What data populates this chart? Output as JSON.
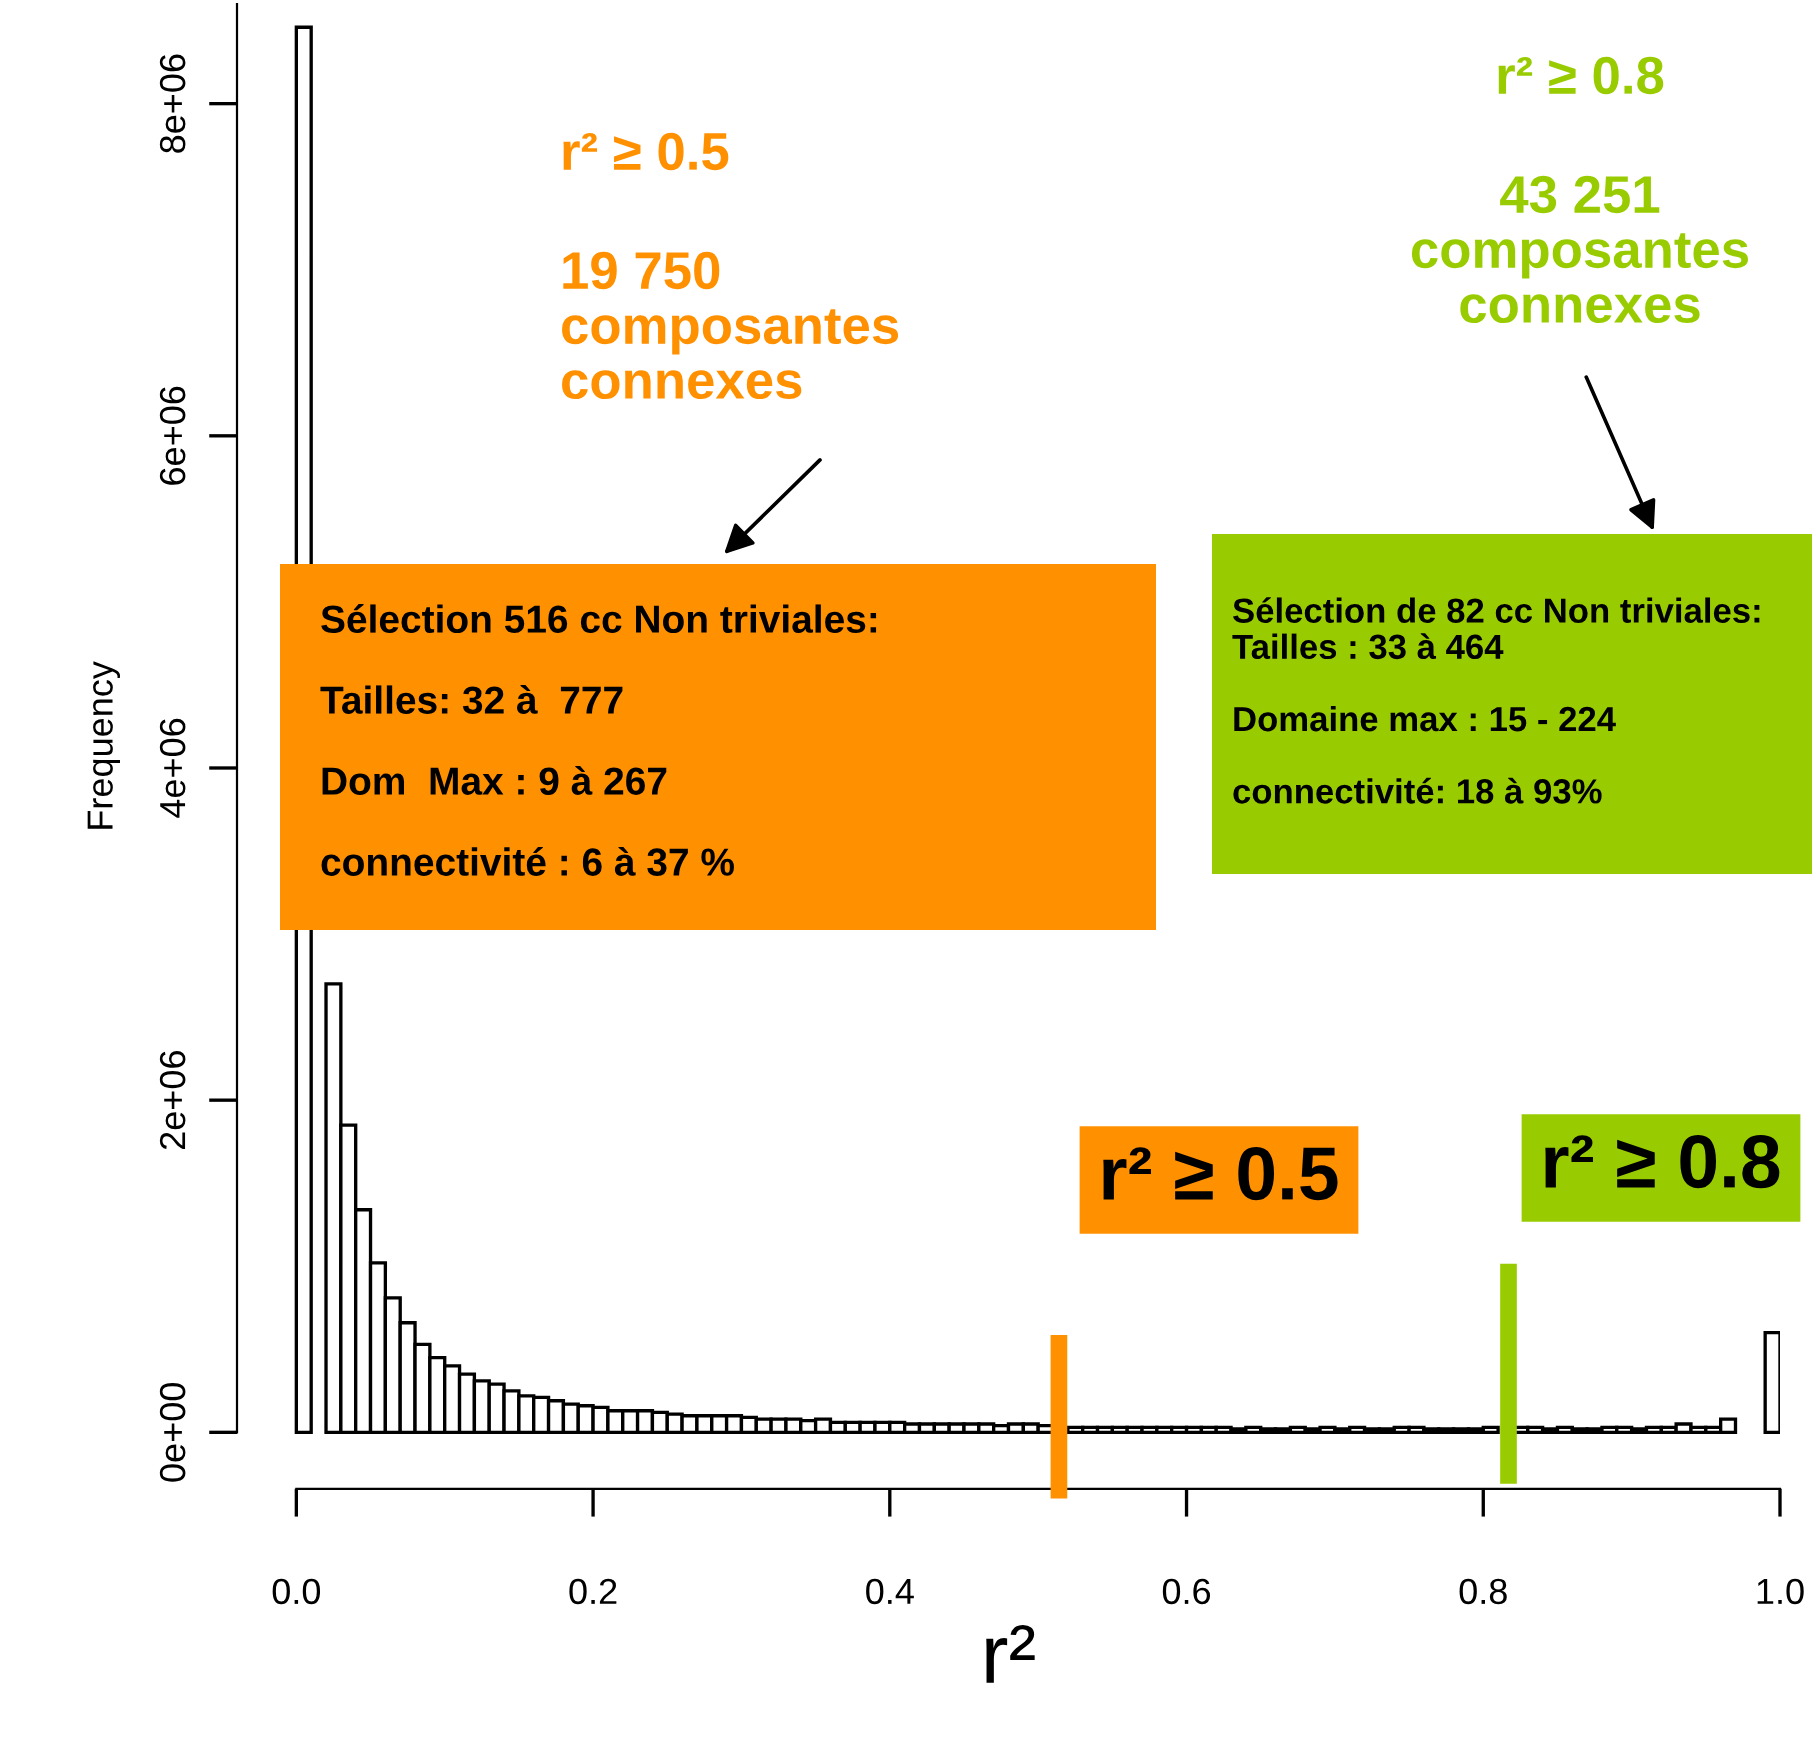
{
  "chart_data": {
    "type": "histogram",
    "xlabel": "r²",
    "ylabel": "Frequency",
    "bins": [
      0,
      0.01,
      0.02,
      0.03,
      0.04,
      0.05,
      0.06,
      0.07,
      0.08,
      0.09,
      0.1,
      0.11,
      0.12,
      0.13,
      0.14,
      0.15,
      0.16,
      0.17,
      0.18,
      0.19,
      0.2,
      0.21,
      0.22,
      0.23,
      0.24,
      0.25,
      0.26,
      0.27,
      0.28,
      0.29,
      0.3,
      0.31,
      0.32,
      0.33,
      0.34,
      0.35,
      0.36,
      0.37,
      0.38,
      0.39,
      0.4,
      0.41,
      0.42,
      0.43,
      0.44,
      0.45,
      0.46,
      0.47,
      0.48,
      0.49,
      0.5,
      0.51,
      0.52,
      0.53,
      0.54,
      0.55,
      0.56,
      0.57,
      0.58,
      0.59,
      0.6,
      0.61,
      0.62,
      0.63,
      0.64,
      0.65,
      0.66,
      0.67,
      0.68,
      0.69,
      0.7,
      0.71,
      0.72,
      0.73,
      0.74,
      0.75,
      0.76,
      0.77,
      0.78,
      0.79,
      0.8,
      0.81,
      0.82,
      0.83,
      0.84,
      0.85,
      0.86,
      0.87,
      0.88,
      0.89,
      0.9,
      0.91,
      0.92,
      0.93,
      0.94,
      0.95,
      0.96,
      0.97,
      0.98,
      0.99,
      1.0
    ],
    "values": [
      8460000,
      null,
      2700000,
      1850000,
      1340000,
      1020000,
      810000,
      660000,
      530000,
      450000,
      400000,
      350000,
      310000,
      290000,
      250000,
      220000,
      210000,
      190000,
      170000,
      160000,
      150000,
      130000,
      130000,
      130000,
      120000,
      110000,
      100000,
      100000,
      100000,
      100000,
      90000,
      80000,
      80000,
      80000,
      70000,
      80000,
      60000,
      60000,
      60000,
      60000,
      60000,
      50000,
      50000,
      50000,
      50000,
      50000,
      50000,
      40000,
      50000,
      50000,
      40000,
      null,
      30000,
      30000,
      30000,
      30000,
      30000,
      30000,
      30000,
      30000,
      30000,
      30000,
      30000,
      20000,
      30000,
      20000,
      20000,
      30000,
      20000,
      30000,
      20000,
      30000,
      20000,
      20000,
      30000,
      30000,
      20000,
      20000,
      20000,
      20000,
      30000,
      null,
      30000,
      30000,
      20000,
      30000,
      20000,
      20000,
      30000,
      30000,
      20000,
      30000,
      30000,
      50000,
      30000,
      30000,
      80000,
      0,
      0,
      600000
    ],
    "color": "#ffffff",
    "xlim": [
      -0.04,
      1.0
    ],
    "ylim": [
      -340000,
      8600000
    ],
    "xticks": [
      {
        "value": 0,
        "label": "0.0"
      },
      0.2,
      0.4,
      0.6,
      0.8,
      {
        "value": 1,
        "label": "1.0"
      }
    ],
    "yticks": [
      {
        "value": 0,
        "label": "0e+00"
      },
      {
        "value": 2000000,
        "label": "2e+06"
      },
      {
        "value": 4000000,
        "label": "4e+06"
      },
      {
        "value": 6000000,
        "label": "6e+06"
      },
      {
        "value": 8000000,
        "label": "8e+06"
      }
    ],
    "grid": false,
    "ref_lines": [
      {
        "axis": "x",
        "value": 0.514,
        "label": "r² ≥ 0.5",
        "color": "#ff9000"
      },
      {
        "axis": "x",
        "value": 0.817,
        "label": "r² ≥ 0.8",
        "color": "#99cc00"
      }
    ],
    "annotations": [
      "r² ≥ 0.5",
      "19 750\ncomposantes\nconnexes",
      "Sélection 516 cc Non triviales:\n\nTailles: 32 à  777\n\nDom  Max : 9 à 267\n\nconnectivité : 6 à 37 %",
      "r² ≥ 0.8",
      "43 251\ncomposantes\nconnexes",
      "Sélection de 82 cc Non triviales:\nTailles : 33 à 464\n\nDomaine max : 15 - 224\n\nconnectivité: 18 à 93%"
    ]
  }
}
